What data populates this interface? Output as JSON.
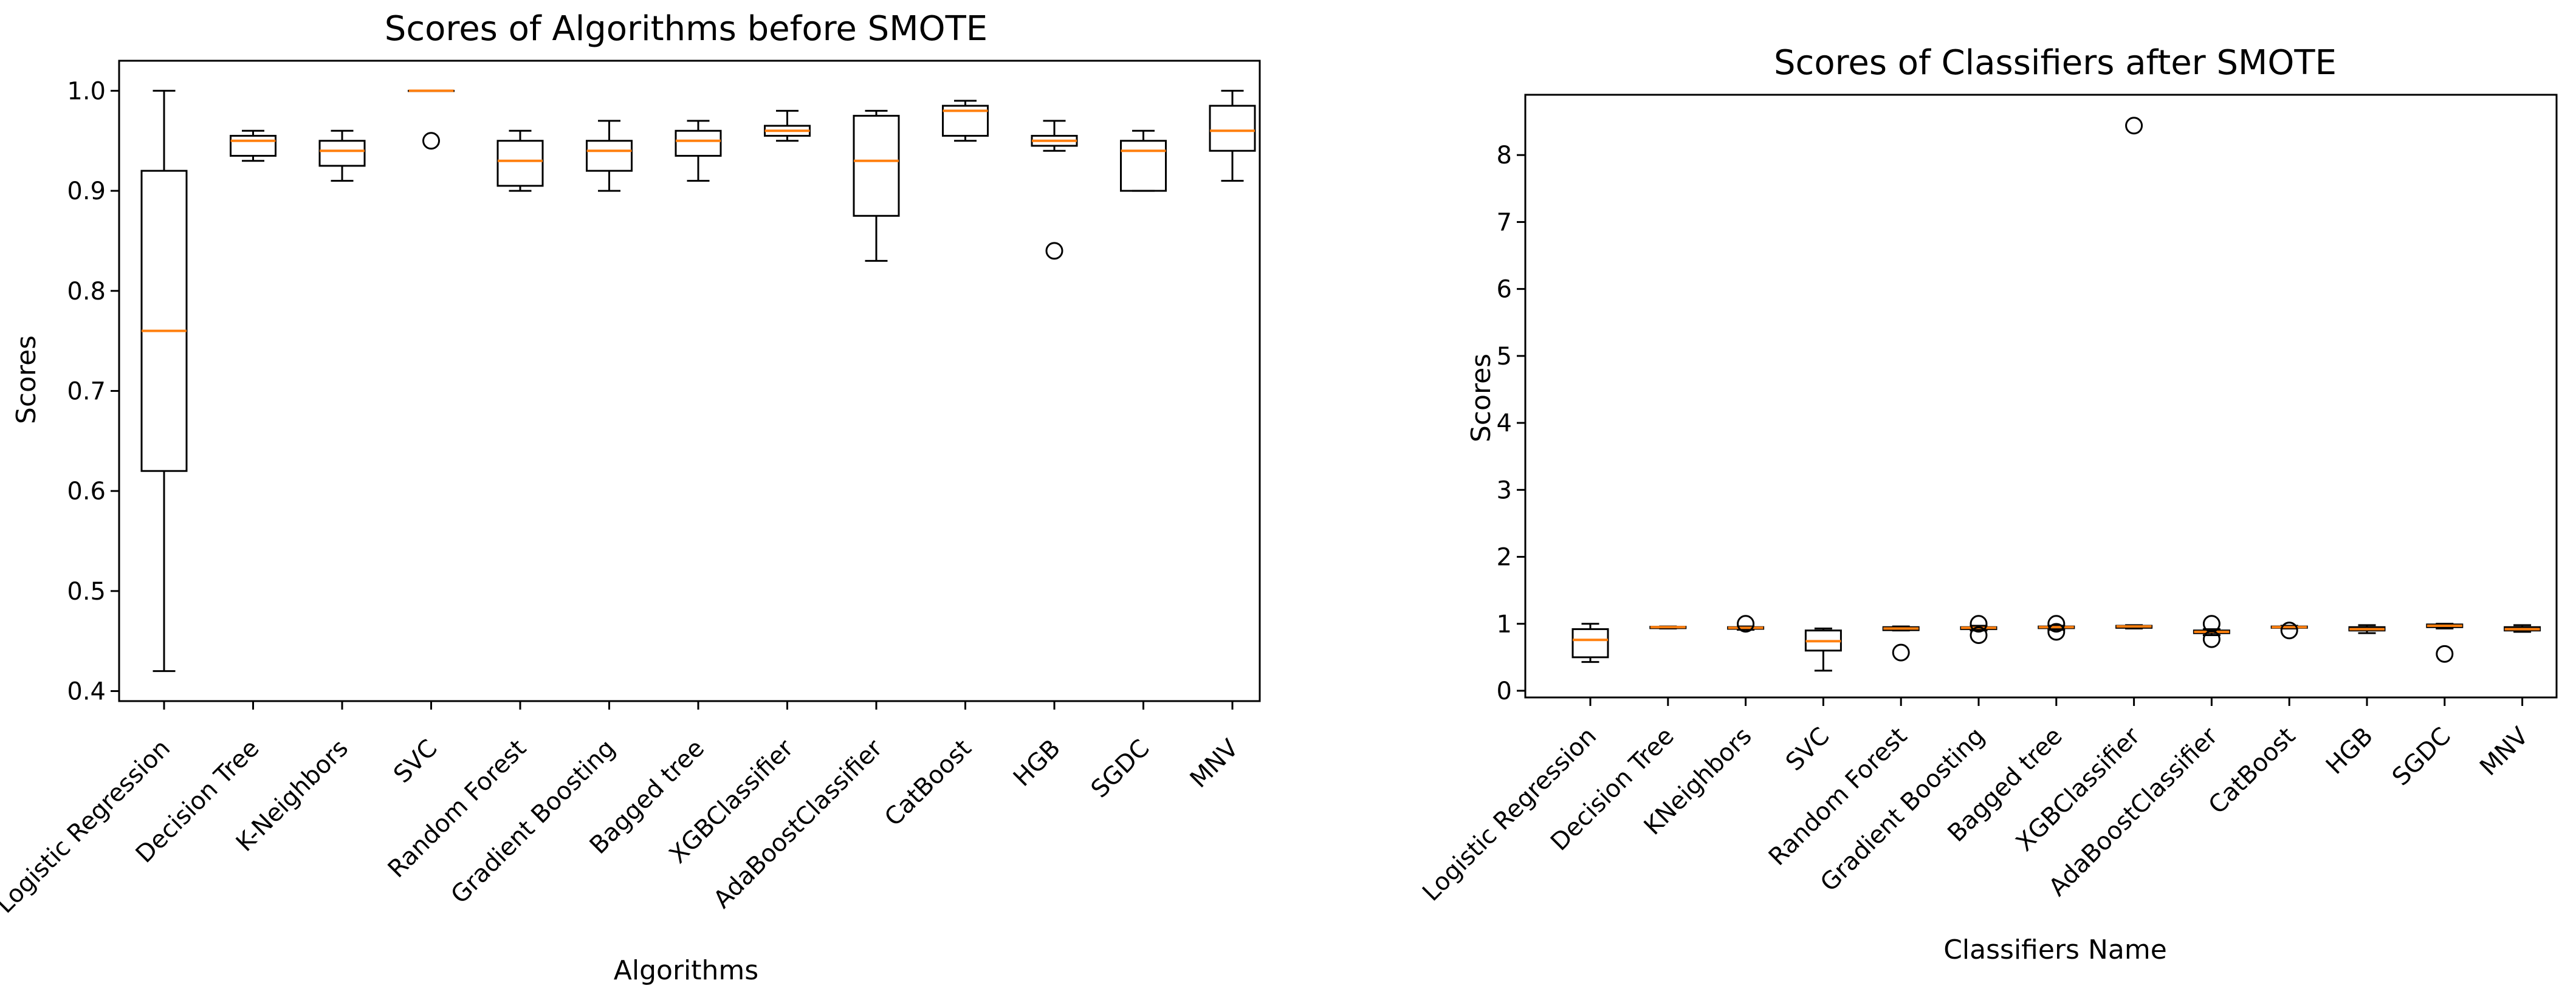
{
  "colors": {
    "box": "#000000",
    "median": "#ff7f0e",
    "background": "#ffffff"
  },
  "chart_data": [
    {
      "type": "boxplot",
      "title": "Scores of Algorithms before SMOTE",
      "xlabel": "Algorithms",
      "ylabel": "Scores",
      "ylim": [
        0.39,
        1.03
      ],
      "yticks": [
        0.4,
        0.5,
        0.6,
        0.7,
        0.8,
        0.9,
        1.0
      ],
      "ytick_labels": [
        "0.4",
        "0.5",
        "0.6",
        "0.7",
        "0.8",
        "0.9",
        "1.0"
      ],
      "categories": [
        "Logistic Regression",
        "Decision Tree",
        "K-Neighbors",
        "SVC",
        "Random Forest",
        "Gradient Boosting",
        "Bagged tree",
        "XGBClassifier",
        "AdaBoostClassifier",
        "CatBoost",
        "HGB",
        "SGDC",
        "MNV"
      ],
      "boxes": [
        {
          "whislo": 0.42,
          "q1": 0.62,
          "med": 0.76,
          "q3": 0.92,
          "whishi": 1.0,
          "fliers": []
        },
        {
          "whislo": 0.93,
          "q1": 0.935,
          "med": 0.95,
          "q3": 0.955,
          "whishi": 0.96,
          "fliers": []
        },
        {
          "whislo": 0.91,
          "q1": 0.925,
          "med": 0.94,
          "q3": 0.95,
          "whishi": 0.96,
          "fliers": []
        },
        {
          "whislo": 1.0,
          "q1": 1.0,
          "med": 1.0,
          "q3": 1.0,
          "whishi": 1.0,
          "fliers": [
            0.95
          ]
        },
        {
          "whislo": 0.9,
          "q1": 0.905,
          "med": 0.93,
          "q3": 0.95,
          "whishi": 0.96,
          "fliers": []
        },
        {
          "whislo": 0.9,
          "q1": 0.92,
          "med": 0.94,
          "q3": 0.95,
          "whishi": 0.97,
          "fliers": []
        },
        {
          "whislo": 0.91,
          "q1": 0.935,
          "med": 0.95,
          "q3": 0.96,
          "whishi": 0.97,
          "fliers": []
        },
        {
          "whislo": 0.95,
          "q1": 0.955,
          "med": 0.96,
          "q3": 0.965,
          "whishi": 0.98,
          "fliers": []
        },
        {
          "whislo": 0.83,
          "q1": 0.875,
          "med": 0.93,
          "q3": 0.975,
          "whishi": 0.98,
          "fliers": []
        },
        {
          "whislo": 0.95,
          "q1": 0.955,
          "med": 0.98,
          "q3": 0.985,
          "whishi": 0.99,
          "fliers": []
        },
        {
          "whislo": 0.94,
          "q1": 0.945,
          "med": 0.95,
          "q3": 0.955,
          "whishi": 0.97,
          "fliers": [
            0.84
          ]
        },
        {
          "whislo": 0.9,
          "q1": 0.9,
          "med": 0.94,
          "q3": 0.95,
          "whishi": 0.96,
          "fliers": []
        },
        {
          "whislo": 0.91,
          "q1": 0.94,
          "med": 0.96,
          "q3": 0.985,
          "whishi": 1.0,
          "fliers": []
        }
      ]
    },
    {
      "type": "boxplot",
      "title": "Scores of Classifiers after SMOTE",
      "xlabel": "Classifiers Name",
      "ylabel": "Scores",
      "ylim": [
        -0.1,
        8.9
      ],
      "yticks": [
        0,
        1,
        2,
        3,
        4,
        5,
        6,
        7,
        8
      ],
      "ytick_labels": [
        "0",
        "1",
        "2",
        "3",
        "4",
        "5",
        "6",
        "7",
        "8"
      ],
      "categories": [
        "Logistic Regression",
        "Decision Tree",
        "KNeighbors",
        "SVC",
        "Random Forest",
        "Gradient Boosting",
        "Bagged tree",
        "XGBClassifier",
        "AdaBoostClassifier",
        "CatBoost",
        "HGB",
        "SGDC",
        "MNV"
      ],
      "boxes": [
        {
          "whislo": 0.43,
          "q1": 0.5,
          "med": 0.76,
          "q3": 0.92,
          "whishi": 1.0,
          "fliers": []
        },
        {
          "whislo": 0.93,
          "q1": 0.935,
          "med": 0.95,
          "q3": 0.955,
          "whishi": 0.96,
          "fliers": []
        },
        {
          "whislo": 0.91,
          "q1": 0.925,
          "med": 0.94,
          "q3": 0.95,
          "whishi": 0.96,
          "fliers": [
            1.0
          ]
        },
        {
          "whislo": 0.3,
          "q1": 0.6,
          "med": 0.74,
          "q3": 0.9,
          "whishi": 0.93,
          "fliers": []
        },
        {
          "whislo": 0.9,
          "q1": 0.905,
          "med": 0.93,
          "q3": 0.95,
          "whishi": 0.96,
          "fliers": [
            0.57
          ]
        },
        {
          "whislo": 0.9,
          "q1": 0.92,
          "med": 0.94,
          "q3": 0.95,
          "whishi": 0.97,
          "fliers": [
            0.83,
            1.0
          ]
        },
        {
          "whislo": 0.91,
          "q1": 0.935,
          "med": 0.95,
          "q3": 0.96,
          "whishi": 0.97,
          "fliers": [
            0.88,
            1.0
          ]
        },
        {
          "whislo": 0.93,
          "q1": 0.94,
          "med": 0.96,
          "q3": 0.97,
          "whishi": 0.98,
          "fliers": [
            8.44
          ]
        },
        {
          "whislo": 0.83,
          "q1": 0.86,
          "med": 0.88,
          "q3": 0.9,
          "whishi": 0.92,
          "fliers": [
            0.77,
            1.0
          ]
        },
        {
          "whislo": 0.93,
          "q1": 0.94,
          "med": 0.95,
          "q3": 0.96,
          "whishi": 0.97,
          "fliers": [
            0.9
          ]
        },
        {
          "whislo": 0.86,
          "q1": 0.9,
          "med": 0.92,
          "q3": 0.95,
          "whishi": 0.98,
          "fliers": []
        },
        {
          "whislo": 0.93,
          "q1": 0.95,
          "med": 0.97,
          "q3": 0.99,
          "whishi": 1.0,
          "fliers": [
            0.55
          ]
        },
        {
          "whislo": 0.88,
          "q1": 0.9,
          "med": 0.92,
          "q3": 0.95,
          "whishi": 0.98,
          "fliers": []
        }
      ]
    }
  ]
}
